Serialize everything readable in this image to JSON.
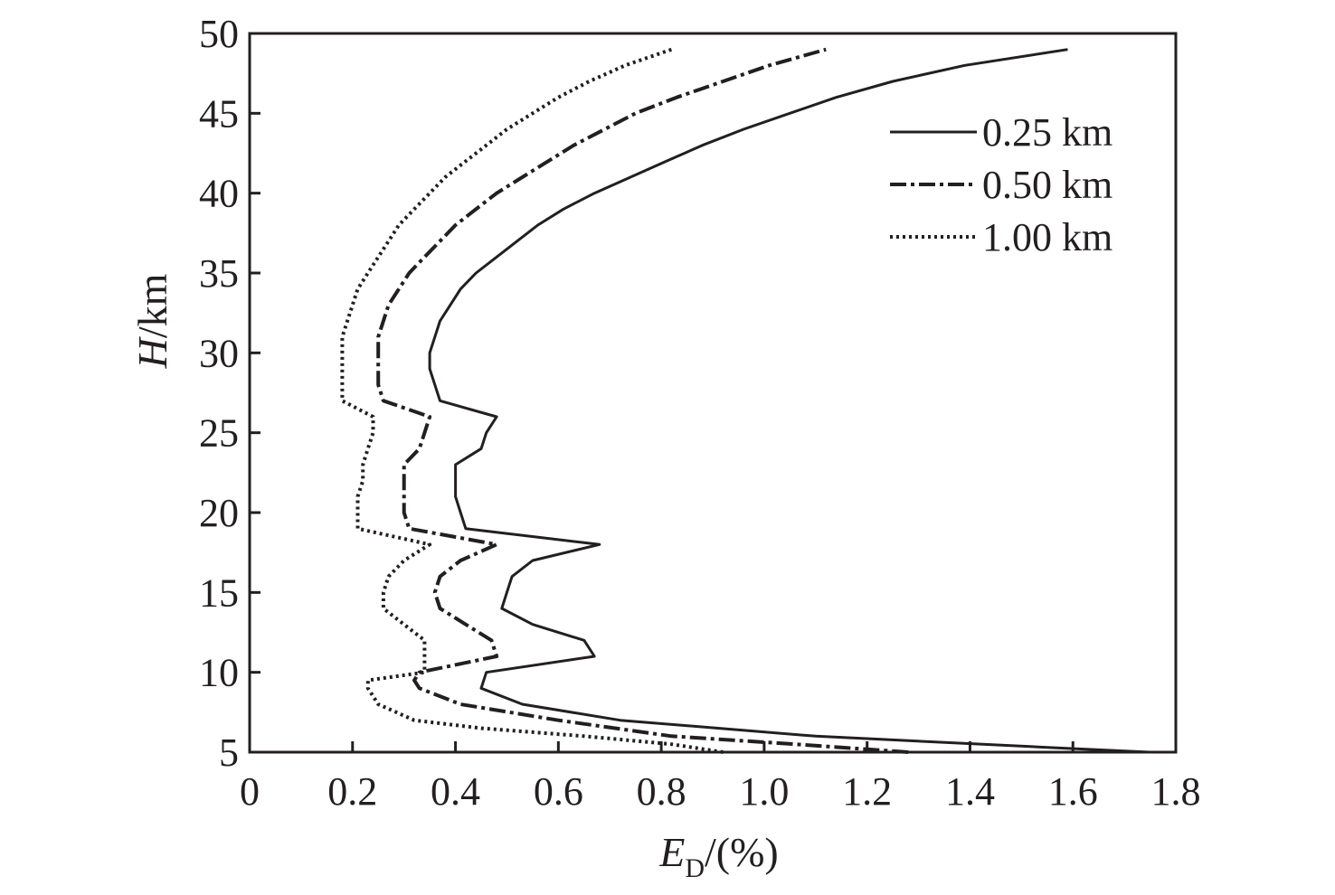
{
  "chart_data": {
    "type": "line",
    "xlabel": {
      "main": "E",
      "sub": "D",
      "rest": "/(%)"
    },
    "ylabel": {
      "main": "H",
      "rest": "/km"
    },
    "xlim": [
      0,
      1.8
    ],
    "ylim": [
      5,
      50
    ],
    "xticks": [
      "0",
      "0.2",
      "0.4",
      "0.6",
      "0.8",
      "1.0",
      "1.2",
      "1.4",
      "1.6",
      "1.8"
    ],
    "xtick_values": [
      0,
      0.2,
      0.4,
      0.6,
      0.8,
      1.0,
      1.2,
      1.4,
      1.6,
      1.8
    ],
    "yticks": [
      "5",
      "10",
      "15",
      "20",
      "25",
      "30",
      "35",
      "40",
      "45",
      "50"
    ],
    "ytick_values": [
      5,
      10,
      15,
      20,
      25,
      30,
      35,
      40,
      45,
      50
    ],
    "grid": false,
    "legend_position": "top-right",
    "series": [
      {
        "name": "0.25 km",
        "line_style": "solid",
        "color": "#231f20",
        "points": [
          [
            1.75,
            5
          ],
          [
            1.55,
            5.3
          ],
          [
            1.1,
            6
          ],
          [
            0.72,
            7
          ],
          [
            0.53,
            8
          ],
          [
            0.45,
            9
          ],
          [
            0.46,
            10
          ],
          [
            0.67,
            11
          ],
          [
            0.65,
            12
          ],
          [
            0.55,
            13
          ],
          [
            0.49,
            14
          ],
          [
            0.5,
            15
          ],
          [
            0.51,
            16
          ],
          [
            0.55,
            17
          ],
          [
            0.68,
            18
          ],
          [
            0.42,
            19
          ],
          [
            0.41,
            20
          ],
          [
            0.4,
            21
          ],
          [
            0.4,
            22
          ],
          [
            0.4,
            23
          ],
          [
            0.45,
            24
          ],
          [
            0.46,
            25
          ],
          [
            0.48,
            26
          ],
          [
            0.37,
            27
          ],
          [
            0.36,
            28
          ],
          [
            0.35,
            29
          ],
          [
            0.35,
            30
          ],
          [
            0.36,
            31
          ],
          [
            0.37,
            32
          ],
          [
            0.39,
            33
          ],
          [
            0.41,
            34
          ],
          [
            0.44,
            35
          ],
          [
            0.48,
            36
          ],
          [
            0.52,
            37
          ],
          [
            0.56,
            38
          ],
          [
            0.61,
            39
          ],
          [
            0.67,
            40
          ],
          [
            0.74,
            41
          ],
          [
            0.81,
            42
          ],
          [
            0.88,
            43
          ],
          [
            0.96,
            44
          ],
          [
            1.05,
            45
          ],
          [
            1.14,
            46
          ],
          [
            1.25,
            47
          ],
          [
            1.39,
            48
          ],
          [
            1.59,
            49
          ]
        ]
      },
      {
        "name": "0.50 km",
        "line_style": "dashdot",
        "color": "#231f20",
        "points": [
          [
            1.28,
            5
          ],
          [
            1.06,
            5.5
          ],
          [
            0.82,
            6
          ],
          [
            0.6,
            7
          ],
          [
            0.41,
            8
          ],
          [
            0.33,
            9
          ],
          [
            0.32,
            9.5
          ],
          [
            0.33,
            10
          ],
          [
            0.48,
            11
          ],
          [
            0.47,
            12
          ],
          [
            0.42,
            13
          ],
          [
            0.37,
            14
          ],
          [
            0.36,
            15
          ],
          [
            0.37,
            16
          ],
          [
            0.41,
            17
          ],
          [
            0.48,
            18
          ],
          [
            0.31,
            19
          ],
          [
            0.3,
            20
          ],
          [
            0.3,
            21
          ],
          [
            0.3,
            22
          ],
          [
            0.3,
            23
          ],
          [
            0.33,
            24
          ],
          [
            0.34,
            25
          ],
          [
            0.35,
            26
          ],
          [
            0.26,
            27
          ],
          [
            0.25,
            28
          ],
          [
            0.25,
            29
          ],
          [
            0.25,
            30
          ],
          [
            0.25,
            31
          ],
          [
            0.26,
            32
          ],
          [
            0.27,
            33
          ],
          [
            0.29,
            34
          ],
          [
            0.31,
            35
          ],
          [
            0.34,
            36
          ],
          [
            0.37,
            37
          ],
          [
            0.4,
            38
          ],
          [
            0.44,
            39
          ],
          [
            0.48,
            40
          ],
          [
            0.53,
            41
          ],
          [
            0.58,
            42
          ],
          [
            0.63,
            43
          ],
          [
            0.69,
            44
          ],
          [
            0.75,
            45
          ],
          [
            0.83,
            46
          ],
          [
            0.92,
            47
          ],
          [
            1.01,
            48
          ],
          [
            1.12,
            49
          ]
        ]
      },
      {
        "name": "1.00 km",
        "line_style": "dotted",
        "color": "#231f20",
        "points": [
          [
            0.92,
            5
          ],
          [
            0.82,
            5.5
          ],
          [
            0.65,
            6
          ],
          [
            0.45,
            6.5
          ],
          [
            0.32,
            7
          ],
          [
            0.25,
            8
          ],
          [
            0.23,
            9
          ],
          [
            0.23,
            9.5
          ],
          [
            0.34,
            10
          ],
          [
            0.34,
            11
          ],
          [
            0.34,
            12
          ],
          [
            0.3,
            13
          ],
          [
            0.26,
            14
          ],
          [
            0.26,
            15
          ],
          [
            0.27,
            16
          ],
          [
            0.3,
            17
          ],
          [
            0.35,
            18
          ],
          [
            0.21,
            19
          ],
          [
            0.21,
            20
          ],
          [
            0.21,
            21
          ],
          [
            0.22,
            22
          ],
          [
            0.22,
            23
          ],
          [
            0.23,
            24
          ],
          [
            0.24,
            25
          ],
          [
            0.24,
            26
          ],
          [
            0.18,
            27
          ],
          [
            0.18,
            28
          ],
          [
            0.18,
            29
          ],
          [
            0.18,
            30
          ],
          [
            0.18,
            31
          ],
          [
            0.19,
            32
          ],
          [
            0.2,
            33
          ],
          [
            0.21,
            34
          ],
          [
            0.23,
            35
          ],
          [
            0.25,
            36
          ],
          [
            0.27,
            37
          ],
          [
            0.29,
            38
          ],
          [
            0.32,
            39
          ],
          [
            0.35,
            40
          ],
          [
            0.38,
            41
          ],
          [
            0.42,
            42
          ],
          [
            0.46,
            43
          ],
          [
            0.5,
            44
          ],
          [
            0.55,
            45
          ],
          [
            0.6,
            46
          ],
          [
            0.66,
            47
          ],
          [
            0.73,
            48
          ],
          [
            0.82,
            49
          ]
        ]
      }
    ]
  }
}
